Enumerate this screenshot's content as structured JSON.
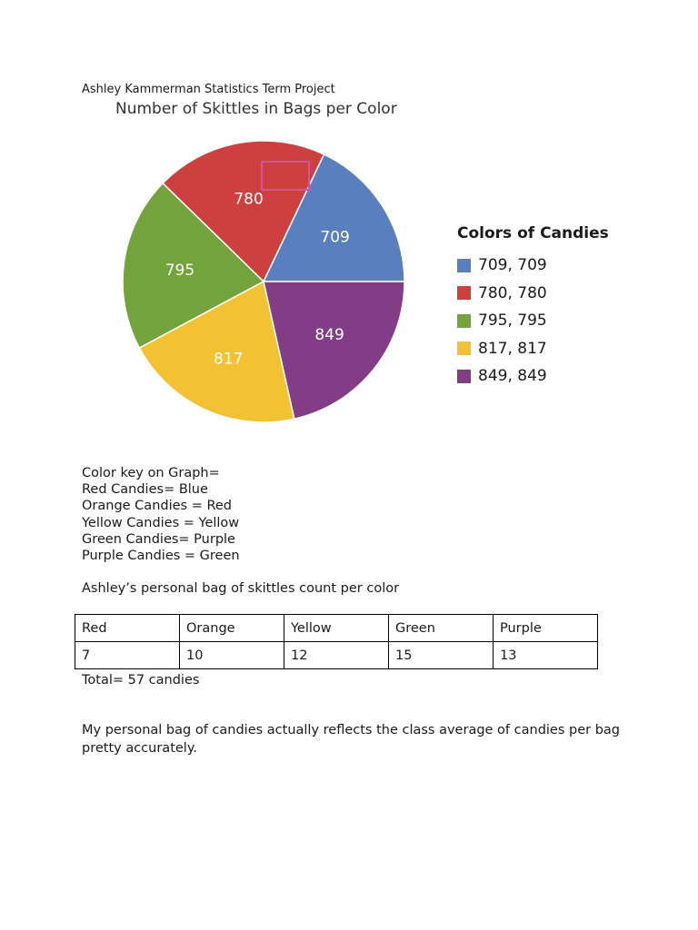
{
  "header": {
    "text": "Ashley Kammerman Statistics Term Project"
  },
  "chart_data": {
    "type": "pie",
    "title": "Number of Skittles in Bags per Color",
    "categories": [
      "709",
      "780",
      "795",
      "817",
      "849"
    ],
    "values": [
      709,
      780,
      795,
      817,
      849
    ],
    "slice_labels": [
      "709",
      "780",
      "795",
      "817",
      "849"
    ],
    "colors": [
      "#5a7fbf",
      "#cc4140",
      "#72a33d",
      "#f2c232",
      "#833d86"
    ],
    "legend": {
      "title": "Colors of Candies",
      "placement": "right",
      "entries": [
        "709, 709",
        "780, 780",
        "795, 795",
        "817, 817",
        "849, 849"
      ]
    },
    "highlight_box_color": "#d64fa6"
  },
  "color_key": {
    "lines": [
      "Color key on Graph=",
      "Red Candies= Blue",
      "Orange Candies = Red",
      "Yellow Candies = Yellow",
      "Green Candies= Purple",
      "Purple Candies = Green"
    ]
  },
  "personal": {
    "heading": "Ashley’s personal bag of skittles count per color",
    "headers": [
      "Red",
      "Orange",
      "Yellow",
      "Green",
      "Purple"
    ],
    "counts": [
      "7",
      "10",
      "12",
      "15",
      "13"
    ],
    "total": "Total= 57 candies"
  },
  "conclusion": "My personal bag of candies actually reflects the class average of candies per bag pretty accurately."
}
